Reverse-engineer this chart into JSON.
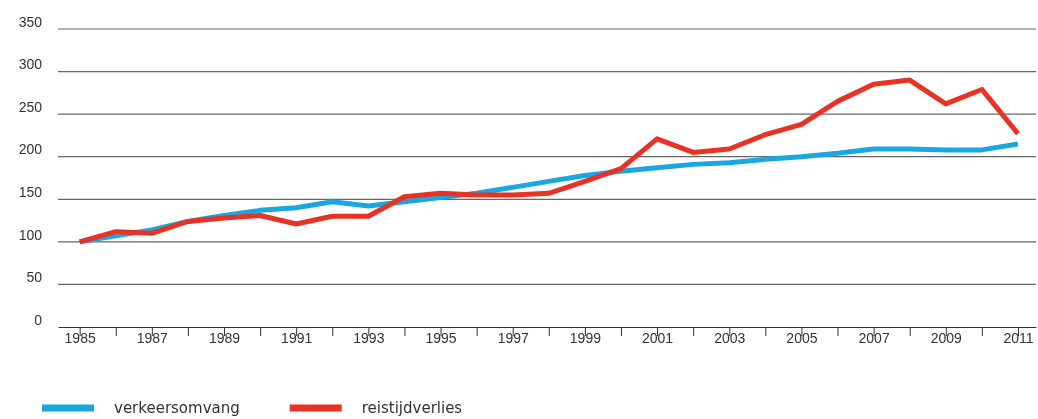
{
  "chart_data": {
    "type": "line",
    "x": [
      1985,
      1986,
      1987,
      1988,
      1989,
      1990,
      1991,
      1992,
      1993,
      1994,
      1995,
      1996,
      1997,
      1998,
      1999,
      2000,
      2001,
      2002,
      2003,
      2004,
      2005,
      2006,
      2007,
      2008,
      2009,
      2010,
      2011
    ],
    "series": [
      {
        "name": "verkeersomvang",
        "color": "#1aa7e0",
        "values": [
          100,
          107,
          114,
          124,
          131,
          137,
          140,
          147,
          142,
          147,
          152,
          157,
          164,
          171,
          178,
          183,
          187,
          191,
          193,
          197,
          200,
          204,
          209,
          209,
          208,
          208,
          215
        ]
      },
      {
        "name": "reistijdverlies",
        "color": "#e63325",
        "values": [
          100,
          112,
          110,
          124,
          128,
          131,
          121,
          130,
          130,
          153,
          157,
          155,
          155,
          157,
          171,
          186,
          221,
          205,
          209,
          226,
          238,
          265,
          285,
          290,
          262,
          279,
          227
        ]
      }
    ],
    "xlim": [
      1984.4,
      2011.5
    ],
    "xticks": [
      1985,
      {
        "value": 1986,
        "label": null
      },
      1987,
      {
        "value": 1988,
        "label": null
      },
      1989,
      {
        "value": 1990,
        "label": null
      },
      1991,
      {
        "value": 1992,
        "label": null
      },
      1993,
      {
        "value": 1994,
        "label": null
      },
      1995,
      {
        "value": 1996,
        "label": null
      },
      1997,
      {
        "value": 1998,
        "label": null
      },
      1999,
      {
        "value": 2000,
        "label": null
      },
      2001,
      {
        "value": 2002,
        "label": null
      },
      2003,
      {
        "value": 2004,
        "label": null
      },
      2005,
      {
        "value": 2006,
        "label": null
      },
      2007,
      {
        "value": 2008,
        "label": null
      },
      2009,
      {
        "value": 2010,
        "label": null
      },
      2011
    ],
    "ylim": [
      0,
      350
    ],
    "yticks": [
      0,
      50,
      100,
      150,
      200,
      250,
      300,
      350
    ],
    "grid": "y",
    "legend": "bottom left",
    "line_style": "solid",
    "marker": "none"
  }
}
